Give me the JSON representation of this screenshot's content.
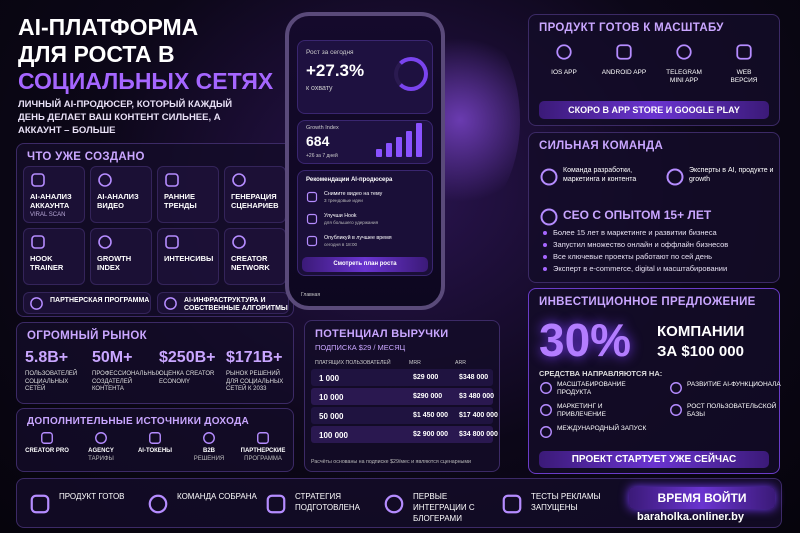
{
  "header": {
    "title_lines": [
      "AI-ПЛАТФОРМА",
      "ДЛЯ РОСТА В"
    ],
    "title_accent": "СОЦИАЛЬНЫХ СЕТЯХ",
    "subtitle": "ЛИЧНЫЙ AI-ПРОДЮСЕР, КОТОРЫЙ КАЖДЫЙ ДЕНЬ ДЕЛАЕТ ВАШ КОНТЕНТ СИЛЬНЕЕ, А АККАУНТ – БОЛЬШЕ"
  },
  "created": {
    "title": "ЧТО УЖЕ СОЗДАНО",
    "items": [
      {
        "label": "AI-АНАЛИЗ АККАУНТА",
        "sub": "VIRAL SCAN"
      },
      {
        "label": "AI-АНАЛИЗ ВИДЕО"
      },
      {
        "label": "РАННИЕ ТРЕНДЫ"
      },
      {
        "label": "ГЕНЕРАЦИЯ СЦЕНАРИЕВ"
      },
      {
        "label": "HOOK TRAINER"
      },
      {
        "label": "GROWTH INDEX"
      },
      {
        "label": "ИНТЕНСИВЫ"
      },
      {
        "label": "CREATOR NETWORK"
      }
    ],
    "wide_items": [
      "ПАРТНЕРСКАЯ ПРОГРАММА",
      "AI-ИНФРАСТРУКТУРА И СОБСТВЕННЫЕ АЛГОРИТМЫ"
    ]
  },
  "market": {
    "title": "ОГРОМНЫЙ РЫНОК",
    "stats": [
      {
        "value": "5.8B+",
        "label": "ПОЛЬЗОВАТЕЛЕЙ СОЦИАЛЬНЫХ СЕТЕЙ"
      },
      {
        "value": "50M+",
        "label": "ПРОФЕССИОНАЛЬНЫХ СОЗДАТЕЛЕЙ КОНТЕНТА"
      },
      {
        "value": "$250B+",
        "label": "ОЦЕНКА CREATOR ECONOMY"
      },
      {
        "value": "$171B+",
        "label": "РЫНОК РЕШЕНИЙ ДЛЯ СОЦИАЛЬНЫХ СЕТЕЙ К 2033"
      }
    ]
  },
  "income": {
    "title": "ДОПОЛНИТЕЛЬНЫЕ ИСТОЧНИКИ ДОХОДА",
    "items": [
      {
        "label": "CREATOR PRO"
      },
      {
        "label": "AGENCY",
        "sub": "ТАРИФЫ"
      },
      {
        "label": "AI-ТОКЕНЫ"
      },
      {
        "label": "B2B",
        "sub": "РЕШЕНИЯ"
      },
      {
        "label": "ПАРТНЕРСКИЕ",
        "sub": "ПРОГРАММА"
      }
    ]
  },
  "phone": {
    "growth_title": "Рост за сегодня",
    "growth_value": "+27.3%",
    "growth_sub": "к охвату",
    "index_title": "Growth Index",
    "index_value": "684",
    "index_sub": "+26 за 7 дней",
    "reco_title": "Рекомендации AI-продюсера",
    "recos": [
      {
        "label": "Снимите видео на тему",
        "sub": "3 трендовые идеи"
      },
      {
        "label": "Улучши Hook",
        "sub": "для большего удержания"
      },
      {
        "label": "Опубликуй в лучшее время",
        "sub": "сегодня в 18:00"
      }
    ],
    "button": "Смотреть план роста",
    "tab": "Главная"
  },
  "revenue": {
    "title": "ПОТЕНЦИАЛ ВЫРУЧКИ",
    "subtitle": "ПОДПИСКА $29 / МЕСЯЦ",
    "columns": [
      "ПЛАТЯЩИХ ПОЛЬЗОВАТЕЛЕЙ",
      "MRR",
      "ARR"
    ],
    "rows": [
      [
        "1 000",
        "$29 000",
        "$348 000"
      ],
      [
        "10 000",
        "$290 000",
        "$3 480 000"
      ],
      [
        "50 000",
        "$1 450 000",
        "$17 400 000"
      ],
      [
        "100 000",
        "$2 900 000",
        "$34 800 000"
      ]
    ],
    "note": "Расчёты основаны на подписке $29/мес и являются сценарными"
  },
  "product": {
    "title": "ПРОДУКТ ГОТОВ К МАСШТАБУ",
    "platforms": [
      {
        "label": "IOS APP"
      },
      {
        "label": "ANDROID APP"
      },
      {
        "label": "TELEGRAM",
        "sub": "MINI APP"
      },
      {
        "label": "WEB",
        "sub": "ВЕРСИЯ"
      }
    ],
    "cta": "СКОРО В APP STORE И GOOGLE PLAY"
  },
  "team": {
    "title": "СИЛЬНАЯ КОМАНДА",
    "items": [
      "Команда разработки, маркетинга и контента",
      "Эксперты в AI, продукте и growth"
    ],
    "ceo_title": "CEO С ОПЫТОМ 15+ ЛЕТ",
    "ceo_points": [
      "Более 15 лет в маркетинге и развитии бизнеса",
      "Запустил множество онлайн и оффлайн бизнесов",
      "Все ключевые проекты работают по сей день",
      "Эксперт в e-commerce, digital и масштабировании"
    ]
  },
  "investment": {
    "title": "ИНВЕСТИЦИОННОЕ ПРЕДЛОЖЕНИЕ",
    "share": "30%",
    "share_text": [
      "КОМПАНИИ",
      "ЗА $100 000"
    ],
    "funds_title": "СРЕДСТВА НАПРАВЛЯЮТСЯ НА:",
    "funds": [
      "МАСШТАБИРОВАНИЕ ПРОДУКТА",
      "РАЗВИТИЕ AI-ФУНКЦИОНАЛА",
      "МАРКЕТИНГ И ПРИВЛЕЧЕНИЕ",
      "РОСТ ПОЛЬЗОВАТЕЛЬСКОЙ БАЗЫ",
      "МЕЖДУНАРОДНЫЙ ЗАПУСК"
    ],
    "cta": "ПРОЕКТ СТАРТУЕТ УЖЕ СЕЙЧАС"
  },
  "footer": {
    "steps": [
      "ПРОДУКТ ГОТОВ",
      "КОМАНДА СОБРАНА",
      "СТРАТЕГИЯ ПОДГОТОВЛЕНА",
      "ПЕРВЫЕ ИНТЕГРАЦИИ С БЛОГЕРАМИ",
      "ТЕСТЫ РЕКЛАМЫ ЗАПУЩЕНЫ"
    ],
    "cta": "ВРЕМЯ ВОЙТИ",
    "watermark": "baraholka.onliner.by"
  }
}
